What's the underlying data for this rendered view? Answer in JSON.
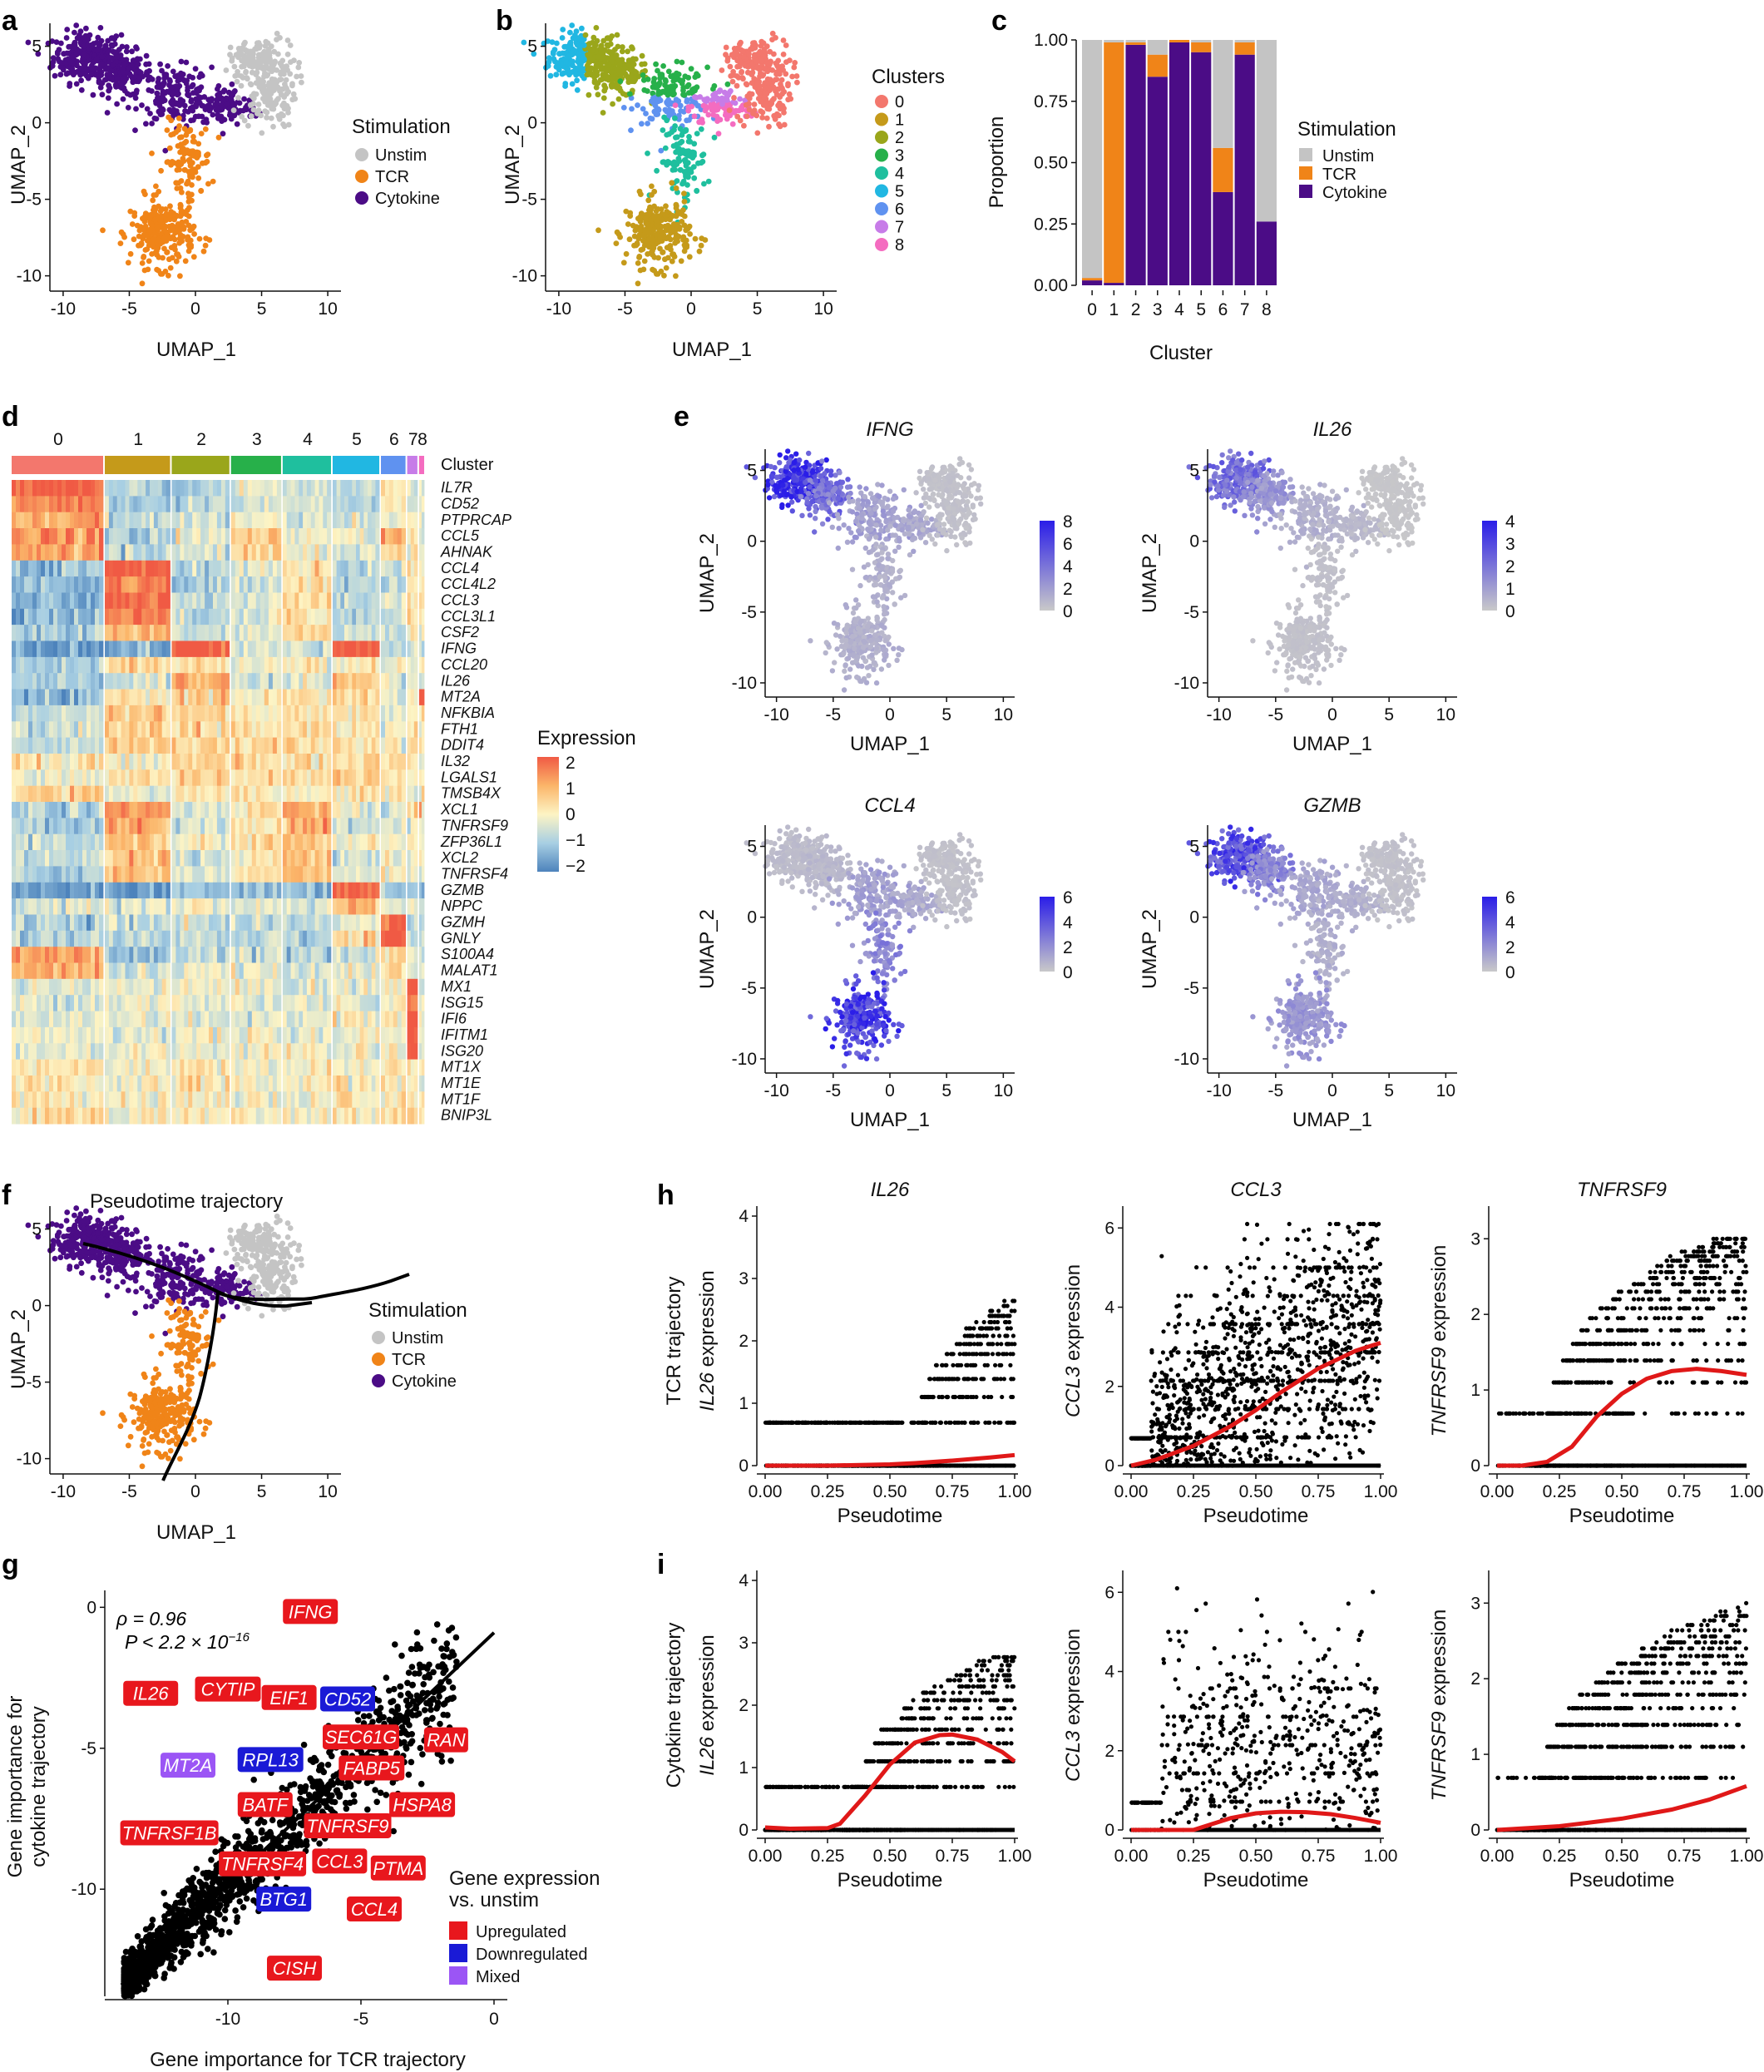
{
  "panel_labels": [
    "a",
    "b",
    "c",
    "d",
    "e",
    "f",
    "g",
    "h",
    "i"
  ],
  "colors": {
    "unstim": "#c4c4c4",
    "tcr": "#f08418",
    "cytokine": "#4b0c86",
    "clusters": [
      "#f3776d",
      "#c59a1a",
      "#9aa61b",
      "#27b04a",
      "#1fbf9e",
      "#21b7e2",
      "#5f92f0",
      "#c77ce8",
      "#f46cc0"
    ],
    "upregulated": "#e8171d",
    "downregulated": "#1a1ad6",
    "mixed": "#9b55f5",
    "feature_low": "#c9c9c9",
    "feature_high": "#2a1de8",
    "smooth_line": "#e01818"
  },
  "panel_a": {
    "xlabel": "UMAP_1",
    "ylabel": "UMAP_2",
    "xticks": [
      "-10",
      "-5",
      "0",
      "5",
      "10"
    ],
    "yticks": [
      "5",
      "0",
      "-5",
      "-10"
    ],
    "legend_title": "Stimulation",
    "legend": [
      "Unstim",
      "TCR",
      "Cytokine"
    ]
  },
  "panel_b": {
    "xlabel": "UMAP_1",
    "ylabel": "UMAP_2",
    "xticks": [
      "-10",
      "-5",
      "0",
      "5",
      "10"
    ],
    "yticks": [
      "5",
      "0",
      "-5",
      "-10"
    ],
    "legend_title": "Clusters",
    "legend": [
      "0",
      "1",
      "2",
      "3",
      "4",
      "5",
      "6",
      "7",
      "8"
    ]
  },
  "panel_d": {
    "cluster_label": "Cluster",
    "clusters": [
      "0",
      "1",
      "2",
      "3",
      "4",
      "5",
      "6",
      "7",
      "8"
    ],
    "genes": [
      "IL7R",
      "CD52",
      "PTPRCAP",
      "CCL5",
      "AHNAK",
      "CCL4",
      "CCL4L2",
      "CCL3",
      "CCL3L1",
      "CSF2",
      "IFNG",
      "CCL20",
      "IL26",
      "MT2A",
      "NFKBIA",
      "FTH1",
      "DDIT4",
      "IL32",
      "LGALS1",
      "TMSB4X",
      "XCL1",
      "TNFRSF9",
      "ZFP36L1",
      "XCL2",
      "TNFRSF4",
      "GZMB",
      "NPPC",
      "GZMH",
      "GNLY",
      "S100A4",
      "MALAT1",
      "MX1",
      "ISG15",
      "IFI6",
      "IFITM1",
      "ISG20",
      "MT1X",
      "MT1E",
      "MT1F",
      "BNIP3L"
    ],
    "legend_title": "Expression",
    "legend_ticks": [
      "2",
      "1",
      "0",
      "−1",
      "−2"
    ]
  },
  "panel_e": {
    "genes": [
      "IFNG",
      "IL26",
      "CCL4",
      "GZMB"
    ],
    "xlabel": "UMAP_1",
    "ylabel": "UMAP_2",
    "xticks": [
      "-10",
      "-5",
      "0",
      "5",
      "10"
    ],
    "yticks": [
      "5",
      "0",
      "-5",
      "-10"
    ],
    "scales": [
      [
        "8",
        "6",
        "4",
        "2",
        "0"
      ],
      [
        "4",
        "3",
        "2",
        "1",
        "0"
      ],
      [
        "6",
        "4",
        "2",
        "0"
      ],
      [
        "6",
        "4",
        "2",
        "0"
      ]
    ]
  },
  "panel_f": {
    "title": "Pseudotime trajectory",
    "xlabel": "UMAP_1",
    "ylabel": "UMAP_2",
    "xticks": [
      "-10",
      "-5",
      "0",
      "5",
      "10"
    ],
    "yticks": [
      "5",
      "0",
      "-5",
      "-10"
    ],
    "legend_title": "Stimulation",
    "legend": [
      "Unstim",
      "TCR",
      "Cytokine"
    ]
  },
  "panel_g": {
    "xlabel": "Gene importance for TCR trajectory",
    "ylabel_line1": "Gene importance for",
    "ylabel_line2": "cytokine trajectory",
    "xticks": [
      "-10",
      "-5",
      "0"
    ],
    "yticks": [
      "0",
      "-5",
      "-10"
    ],
    "rho_text": "ρ = 0.96",
    "p_text": "P < 2.2 × 10",
    "p_exp": "−16",
    "legend_title_line1": "Gene expression",
    "legend_title_line2": "vs. unstim",
    "legend": [
      "Upregulated",
      "Downregulated",
      "Mixed"
    ]
  },
  "panel_hi": {
    "row_h_line1": "TCR trajectory",
    "row_i_line1": "Cytokine trajectory",
    "genes": [
      "IL26",
      "CCL3",
      "TNFRSF9"
    ],
    "expr_suffix": " expression",
    "xlabel": "Pseudotime",
    "xticks": [
      "0.00",
      "0.25",
      "0.50",
      "0.75",
      "1.00"
    ],
    "yticks": [
      [
        "0",
        "1",
        "2",
        "3",
        "4"
      ],
      [
        "0",
        "2",
        "4",
        "6"
      ],
      [
        "0",
        "1",
        "2",
        "3"
      ]
    ]
  },
  "chart_data": [
    {
      "panel": "c",
      "type": "bar",
      "stacked": true,
      "title": "",
      "xlabel": "Cluster",
      "ylabel": "Proportion",
      "categories": [
        "0",
        "1",
        "2",
        "3",
        "4",
        "5",
        "6",
        "7",
        "8"
      ],
      "yticks": [
        "0.00",
        "0.25",
        "0.50",
        "0.75",
        "1.00"
      ],
      "ylim": [
        0,
        1
      ],
      "legend_title": "Stimulation",
      "series": [
        {
          "name": "Cytokine",
          "values": [
            0.02,
            0.01,
            0.98,
            0.85,
            0.99,
            0.95,
            0.38,
            0.94,
            0.26
          ]
        },
        {
          "name": "TCR",
          "values": [
            0.01,
            0.98,
            0.01,
            0.09,
            0.01,
            0.04,
            0.18,
            0.05,
            0.0
          ]
        },
        {
          "name": "Unstim",
          "values": [
            0.97,
            0.01,
            0.01,
            0.06,
            0.0,
            0.01,
            0.44,
            0.01,
            0.74
          ]
        }
      ]
    },
    {
      "panel": "g",
      "type": "scatter",
      "xlabel": "Gene importance for TCR trajectory",
      "ylabel": "Gene importance for cytokine trajectory",
      "xlim": [
        -14.5,
        0.5
      ],
      "ylim": [
        -13.8,
        0.6
      ],
      "annotations": [
        {
          "gene": "IFNG",
          "x": -6.9,
          "y": -0.15,
          "category": "up"
        },
        {
          "gene": "CD52",
          "x": -5.5,
          "y": -3.25,
          "category": "down"
        },
        {
          "gene": "CYTIP",
          "x": -10.0,
          "y": -2.9,
          "category": "up"
        },
        {
          "gene": "EIF1",
          "x": -7.7,
          "y": -3.2,
          "category": "up"
        },
        {
          "gene": "IL26",
          "x": -12.9,
          "y": -3.05,
          "category": "up"
        },
        {
          "gene": "SEC61G",
          "x": -5.0,
          "y": -4.6,
          "category": "up"
        },
        {
          "gene": "RAN",
          "x": -1.8,
          "y": -4.7,
          "category": "up"
        },
        {
          "gene": "MT2A",
          "x": -11.5,
          "y": -5.6,
          "category": "mixed"
        },
        {
          "gene": "RPL13",
          "x": -8.4,
          "y": -5.4,
          "category": "down"
        },
        {
          "gene": "FABP5",
          "x": -4.6,
          "y": -5.7,
          "category": "up"
        },
        {
          "gene": "BATF",
          "x": -8.6,
          "y": -7.0,
          "category": "up"
        },
        {
          "gene": "HSPA8",
          "x": -2.7,
          "y": -7.0,
          "category": "up"
        },
        {
          "gene": "TNFRSF1B",
          "x": -12.2,
          "y": -8.0,
          "category": "up"
        },
        {
          "gene": "TNFRSF9",
          "x": -5.5,
          "y": -7.75,
          "category": "up"
        },
        {
          "gene": "TNFRSF4",
          "x": -8.7,
          "y": -9.1,
          "category": "up"
        },
        {
          "gene": "CCL3",
          "x": -5.8,
          "y": -9.0,
          "category": "up"
        },
        {
          "gene": "PTMA",
          "x": -3.6,
          "y": -9.25,
          "category": "up"
        },
        {
          "gene": "BTG1",
          "x": -7.9,
          "y": -10.35,
          "category": "down"
        },
        {
          "gene": "CCL4",
          "x": -4.5,
          "y": -10.7,
          "category": "up"
        },
        {
          "gene": "CISH",
          "x": -7.5,
          "y": -12.8,
          "category": "up"
        }
      ],
      "fit_line": [
        [
          -14.0,
          -13.4
        ],
        [
          0.0,
          -0.9
        ]
      ],
      "stats": {
        "rho": 0.96,
        "p": "< 2.2e-16"
      }
    },
    {
      "panel": "h",
      "type": "scatter",
      "title": "TCR trajectory",
      "xlabel": "Pseudotime",
      "xlim": [
        0,
        1
      ],
      "series": [
        {
          "name": "IL26",
          "ylim": [
            0,
            4
          ],
          "smooth_x": [
            0,
            0.25,
            0.5,
            0.6,
            0.75,
            0.9,
            1.0
          ],
          "smooth_y": [
            0.0,
            0.0,
            0.02,
            0.04,
            0.08,
            0.13,
            0.17
          ]
        },
        {
          "name": "CCL3",
          "ylim": [
            0,
            6.3
          ],
          "smooth_x": [
            0,
            0.1,
            0.25,
            0.4,
            0.5,
            0.6,
            0.75,
            0.9,
            1.0
          ],
          "smooth_y": [
            0.0,
            0.15,
            0.5,
            1.0,
            1.4,
            1.85,
            2.45,
            2.9,
            3.1
          ]
        },
        {
          "name": "TNFRSF9",
          "ylim": [
            0,
            3.3
          ],
          "smooth_x": [
            0,
            0.1,
            0.2,
            0.3,
            0.4,
            0.5,
            0.6,
            0.7,
            0.8,
            0.9,
            1.0
          ],
          "smooth_y": [
            0.0,
            0.0,
            0.05,
            0.25,
            0.65,
            0.95,
            1.15,
            1.25,
            1.28,
            1.25,
            1.2
          ]
        }
      ]
    },
    {
      "panel": "i",
      "type": "scatter",
      "title": "Cytokine trajectory",
      "xlabel": "Pseudotime",
      "xlim": [
        0,
        1
      ],
      "series": [
        {
          "name": "IL26",
          "ylim": [
            0,
            4
          ],
          "smooth_x": [
            0,
            0.1,
            0.25,
            0.3,
            0.4,
            0.5,
            0.6,
            0.7,
            0.75,
            0.85,
            0.95,
            1.0
          ],
          "smooth_y": [
            0.04,
            0.02,
            0.03,
            0.1,
            0.55,
            1.05,
            1.4,
            1.52,
            1.53,
            1.45,
            1.25,
            1.1
          ]
        },
        {
          "name": "CCL3",
          "ylim": [
            0,
            6.3
          ],
          "smooth_x": [
            0,
            0.25,
            0.4,
            0.5,
            0.6,
            0.7,
            0.8,
            0.9,
            1.0
          ],
          "smooth_y": [
            0.0,
            0.0,
            0.3,
            0.42,
            0.46,
            0.45,
            0.4,
            0.3,
            0.18
          ]
        },
        {
          "name": "TNFRSF9",
          "ylim": [
            0,
            3.3
          ],
          "smooth_x": [
            0,
            0.25,
            0.5,
            0.7,
            0.85,
            1.0
          ],
          "smooth_y": [
            0.0,
            0.05,
            0.15,
            0.27,
            0.4,
            0.58
          ]
        }
      ]
    }
  ]
}
